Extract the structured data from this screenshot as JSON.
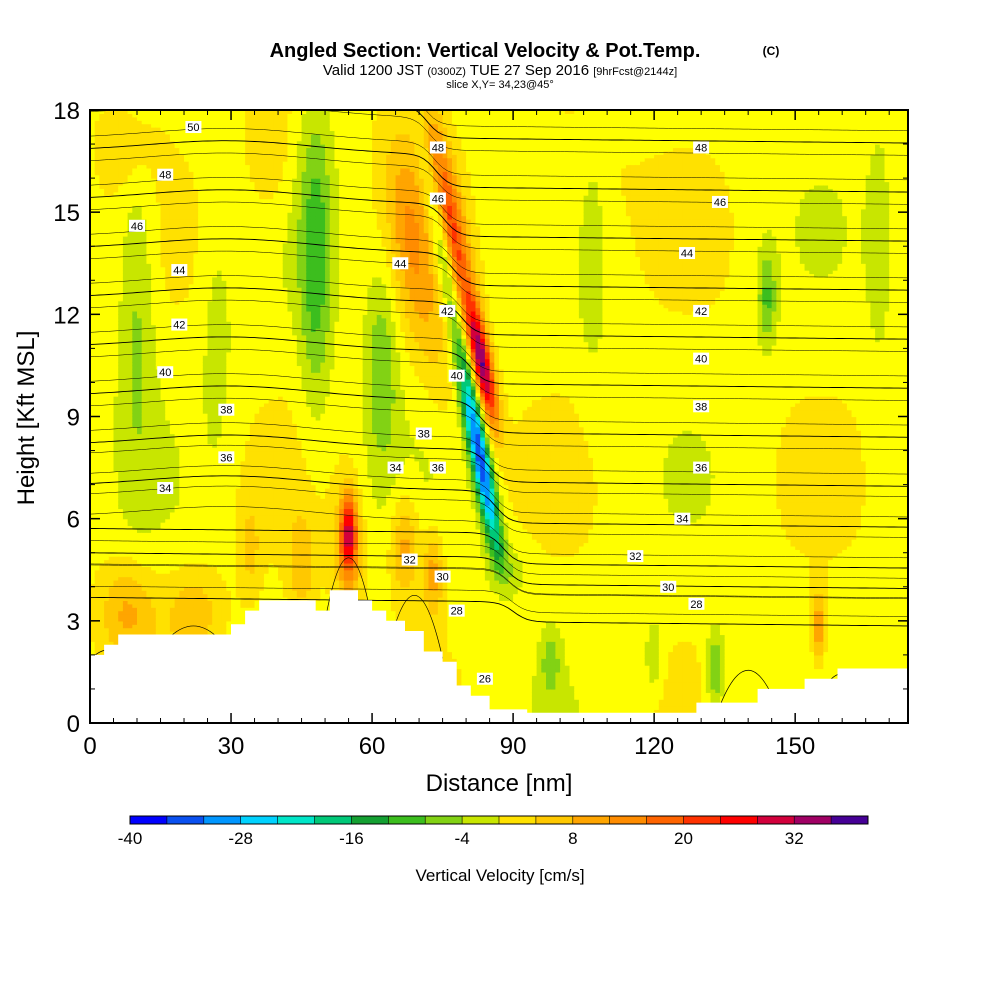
{
  "chart_data": {
    "type": "heatmap",
    "title": "Angled Section: Vertical Velocity & Pot.Temp.",
    "title_unit": "(C)",
    "subtitle_parts": [
      "Valid 1200 JST",
      "(0300Z)",
      "TUE 27 Sep 2016",
      "[9hrFcst@2144z]"
    ],
    "slice_label": "slice X,Y= 34,23@45°",
    "xlabel": "Distance [nm]",
    "ylabel": "Height [Kft MSL]",
    "xlim": [
      0,
      174
    ],
    "ylim": [
      0,
      18
    ],
    "x_ticks": [
      0,
      30,
      60,
      90,
      120,
      150
    ],
    "y_ticks": [
      0,
      3,
      6,
      9,
      12,
      15,
      18
    ],
    "colorbar": {
      "label": "Vertical Velocity [cm/s]",
      "min": -40,
      "max": 40,
      "step": 4,
      "tick_labels": [
        "-40",
        "-28",
        "-16",
        "-4",
        "8",
        "20",
        "32"
      ],
      "colors": [
        "#0000ff",
        "#0a50f0",
        "#0096ff",
        "#00d2ff",
        "#00e6c8",
        "#00c878",
        "#14a032",
        "#3cbe1e",
        "#82d214",
        "#c8e600",
        "#ffff00",
        "#ffe100",
        "#ffc800",
        "#ffa500",
        "#ff8c00",
        "#ff6400",
        "#ff3200",
        "#ff0000",
        "#d2003c",
        "#a00064",
        "#460096"
      ]
    },
    "contour_levels": [
      26,
      28,
      30,
      32,
      34,
      36,
      38,
      40,
      42,
      44,
      46,
      48,
      50
    ],
    "contour_labels": [
      {
        "x": 22,
        "y": 17.5,
        "text": "50"
      },
      {
        "x": 74,
        "y": 16.9,
        "text": "48"
      },
      {
        "x": 16,
        "y": 16.1,
        "text": "48"
      },
      {
        "x": 130,
        "y": 16.9,
        "text": "48"
      },
      {
        "x": 74,
        "y": 15.4,
        "text": "46"
      },
      {
        "x": 10,
        "y": 14.6,
        "text": "46"
      },
      {
        "x": 134,
        "y": 15.3,
        "text": "46"
      },
      {
        "x": 19,
        "y": 13.3,
        "text": "44"
      },
      {
        "x": 66,
        "y": 13.5,
        "text": "44"
      },
      {
        "x": 127,
        "y": 13.8,
        "text": "44"
      },
      {
        "x": 19,
        "y": 11.7,
        "text": "42"
      },
      {
        "x": 76,
        "y": 12.1,
        "text": "42"
      },
      {
        "x": 130,
        "y": 12.1,
        "text": "42"
      },
      {
        "x": 16,
        "y": 10.3,
        "text": "40"
      },
      {
        "x": 78,
        "y": 10.2,
        "text": "40"
      },
      {
        "x": 130,
        "y": 10.7,
        "text": "40"
      },
      {
        "x": 29,
        "y": 9.2,
        "text": "38"
      },
      {
        "x": 71,
        "y": 8.5,
        "text": "38"
      },
      {
        "x": 130,
        "y": 9.3,
        "text": "38"
      },
      {
        "x": 29,
        "y": 7.8,
        "text": "36"
      },
      {
        "x": 74,
        "y": 7.5,
        "text": "36"
      },
      {
        "x": 130,
        "y": 7.5,
        "text": "36"
      },
      {
        "x": 16,
        "y": 6.9,
        "text": "34"
      },
      {
        "x": 65,
        "y": 7.5,
        "text": "34"
      },
      {
        "x": 126,
        "y": 6.0,
        "text": "34"
      },
      {
        "x": 68,
        "y": 4.8,
        "text": "32"
      },
      {
        "x": 116,
        "y": 4.9,
        "text": "32"
      },
      {
        "x": 75,
        "y": 4.3,
        "text": "30"
      },
      {
        "x": 123,
        "y": 4.0,
        "text": "30"
      },
      {
        "x": 78,
        "y": 3.3,
        "text": "28"
      },
      {
        "x": 129,
        "y": 3.5,
        "text": "28"
      },
      {
        "x": 84,
        "y": 1.3,
        "text": "26"
      }
    ]
  }
}
